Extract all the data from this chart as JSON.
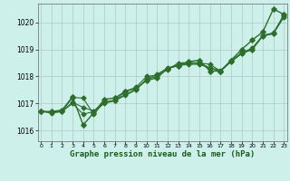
{
  "title": "",
  "xlabel": "Graphe pression niveau de la mer (hPa)",
  "ylabel": "",
  "background_color": "#cdf0ea",
  "grid_color": "#b0c8c0",
  "line_color": "#2d6e2d",
  "ylim": [
    1015.6,
    1020.7
  ],
  "xlim": [
    -0.3,
    23.3
  ],
  "yticks": [
    1016,
    1017,
    1018,
    1019,
    1020
  ],
  "xticks": [
    0,
    1,
    2,
    3,
    4,
    5,
    6,
    7,
    8,
    9,
    10,
    11,
    12,
    13,
    14,
    15,
    16,
    17,
    18,
    19,
    20,
    21,
    22,
    23
  ],
  "series": [
    [
      1016.7,
      1016.7,
      1016.75,
      1017.25,
      1016.2,
      1016.65,
      1017.15,
      1017.2,
      1017.45,
      1017.55,
      1017.85,
      1017.95,
      1018.3,
      1018.4,
      1018.55,
      1018.6,
      1018.2,
      1018.2,
      1018.6,
      1019.0,
      1019.35,
      1019.65,
      1020.5,
      1020.3
    ],
    [
      1016.7,
      1016.68,
      1016.7,
      1017.22,
      1017.2,
      1016.6,
      1017.05,
      1017.1,
      1017.45,
      1017.6,
      1018.0,
      1018.05,
      1018.25,
      1018.5,
      1018.52,
      1018.5,
      1018.45,
      1018.2,
      1018.55,
      1018.85,
      1019.0,
      1019.5,
      1019.6,
      1020.3
    ],
    [
      1016.7,
      1016.65,
      1016.7,
      1017.0,
      1016.6,
      1016.7,
      1017.0,
      1017.1,
      1017.3,
      1017.5,
      1017.9,
      1018.0,
      1018.3,
      1018.4,
      1018.45,
      1018.45,
      1018.3,
      1018.2,
      1018.55,
      1018.85,
      1019.0,
      1019.5,
      1019.58,
      1020.2
    ],
    [
      1016.72,
      1016.66,
      1016.7,
      1017.05,
      1016.85,
      1016.72,
      1017.05,
      1017.12,
      1017.33,
      1017.52,
      1017.9,
      1018.08,
      1018.32,
      1018.43,
      1018.48,
      1018.48,
      1018.33,
      1018.22,
      1018.58,
      1018.88,
      1019.05,
      1019.52,
      1019.62,
      1020.22
    ]
  ]
}
